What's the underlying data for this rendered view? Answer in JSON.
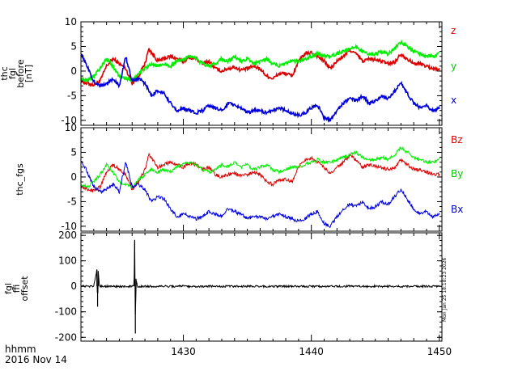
{
  "figure": {
    "time_label": "hhmm",
    "date_label": "2016 Nov 14",
    "timestamp": "Mon Jan 25 18:18:23 2026"
  },
  "chart_data": [
    {
      "type": "line",
      "panel": "thc_fgl_before",
      "ylabel_lines": [
        "thc",
        "fgl",
        "before",
        "[nT]"
      ],
      "ylim": [
        -11,
        10
      ],
      "yticks": [
        10,
        5,
        0,
        -5,
        -10
      ],
      "ytick_labels": [
        "10",
        "5",
        "0",
        "-5",
        "-10"
      ],
      "xlim": [
        1422.0,
        1450.2
      ],
      "xticks": [
        1430,
        1440,
        1450
      ],
      "xtick_labels": [
        "",
        "",
        ""
      ],
      "series": [
        {
          "name": "z",
          "color": "#dd0000",
          "label_color": "#dd0000",
          "x": [
            1422.0,
            1422.5,
            1423.0,
            1423.5,
            1424.0,
            1424.5,
            1425.0,
            1425.5,
            1426.0,
            1426.5,
            1427.0,
            1427.3,
            1427.6,
            1428.0,
            1428.5,
            1429.0,
            1429.5,
            1430.0,
            1430.5,
            1431.0,
            1431.5,
            1432.0,
            1432.5,
            1433.0,
            1433.5,
            1434.0,
            1434.5,
            1435.0,
            1435.5,
            1436.0,
            1436.5,
            1437.0,
            1437.5,
            1438.0,
            1438.5,
            1439.0,
            1439.5,
            1440.0,
            1440.5,
            1441.0,
            1441.5,
            1442.0,
            1442.5,
            1443.0,
            1443.5,
            1444.0,
            1444.5,
            1445.0,
            1445.5,
            1446.0,
            1446.5,
            1447.0,
            1447.5,
            1448.0,
            1448.5,
            1449.0,
            1449.5,
            1450.0
          ],
          "values": [
            -2.0,
            -2.5,
            -2.8,
            -2.0,
            1.0,
            2.5,
            1.5,
            0.5,
            -2.5,
            -1.0,
            1.5,
            4.5,
            3.5,
            2.0,
            2.5,
            3.0,
            2.5,
            2.0,
            2.8,
            2.5,
            1.5,
            2.0,
            0.5,
            0.0,
            0.5,
            0.8,
            0.2,
            0.5,
            1.0,
            0.5,
            -1.0,
            -1.5,
            -0.5,
            -0.5,
            -1.0,
            2.0,
            3.5,
            3.8,
            3.0,
            2.0,
            0.5,
            2.0,
            3.0,
            4.3,
            3.5,
            2.0,
            2.5,
            2.3,
            2.0,
            1.5,
            1.8,
            3.5,
            2.5,
            1.5,
            1.5,
            1.0,
            0.5,
            0.5
          ]
        },
        {
          "name": "y",
          "color": "#00ee00",
          "label_color": "#00cc00",
          "x": [
            1422.0,
            1422.5,
            1423.0,
            1423.5,
            1424.0,
            1424.5,
            1425.0,
            1425.5,
            1426.0,
            1426.5,
            1427.0,
            1427.5,
            1428.0,
            1428.5,
            1429.0,
            1429.5,
            1430.0,
            1430.5,
            1431.0,
            1431.5,
            1432.0,
            1432.5,
            1433.0,
            1433.5,
            1434.0,
            1434.5,
            1435.0,
            1435.5,
            1436.0,
            1436.5,
            1437.0,
            1437.5,
            1438.0,
            1438.5,
            1439.0,
            1439.5,
            1440.0,
            1440.5,
            1441.0,
            1441.5,
            1442.0,
            1442.5,
            1443.0,
            1443.5,
            1444.0,
            1444.5,
            1445.0,
            1445.5,
            1446.0,
            1446.5,
            1447.0,
            1447.5,
            1448.0,
            1448.5,
            1449.0,
            1449.5,
            1450.0
          ],
          "values": [
            -1.5,
            -2.0,
            -1.0,
            0.5,
            2.5,
            1.0,
            -1.0,
            -1.5,
            -2.0,
            -0.5,
            0.5,
            1.5,
            1.0,
            1.5,
            1.0,
            2.0,
            2.5,
            3.0,
            2.5,
            1.5,
            1.0,
            1.5,
            2.5,
            2.0,
            3.0,
            2.0,
            2.5,
            1.5,
            2.0,
            2.5,
            1.5,
            1.0,
            1.5,
            2.0,
            2.0,
            2.5,
            3.0,
            3.5,
            3.0,
            3.0,
            3.5,
            4.0,
            4.5,
            5.0,
            4.0,
            3.5,
            3.5,
            4.0,
            3.5,
            4.5,
            6.0,
            5.0,
            4.0,
            3.5,
            3.0,
            3.0,
            3.5
          ]
        },
        {
          "name": "x",
          "color": "#0000dd",
          "label_color": "#0000cc",
          "x": [
            1422.0,
            1422.5,
            1423.0,
            1423.5,
            1424.0,
            1424.5,
            1425.0,
            1425.5,
            1426.0,
            1426.5,
            1427.0,
            1427.5,
            1428.0,
            1428.5,
            1429.0,
            1429.5,
            1430.0,
            1430.5,
            1431.0,
            1431.5,
            1432.0,
            1432.5,
            1433.0,
            1433.5,
            1434.0,
            1434.5,
            1435.0,
            1435.5,
            1436.0,
            1436.5,
            1437.0,
            1437.5,
            1438.0,
            1438.5,
            1439.0,
            1439.5,
            1440.0,
            1440.5,
            1441.0,
            1441.5,
            1442.0,
            1442.5,
            1443.0,
            1443.5,
            1444.0,
            1444.5,
            1445.0,
            1445.5,
            1446.0,
            1446.5,
            1447.0,
            1447.5,
            1448.0,
            1448.5,
            1449.0,
            1449.5,
            1450.0
          ],
          "values": [
            3.5,
            1.0,
            -2.0,
            -3.0,
            -2.5,
            -1.5,
            -3.0,
            3.0,
            -2.0,
            -1.5,
            -2.5,
            -5.0,
            -4.0,
            -4.5,
            -6.5,
            -8.0,
            -7.5,
            -8.0,
            -8.5,
            -8.0,
            -7.0,
            -7.5,
            -8.0,
            -6.5,
            -7.0,
            -7.5,
            -8.5,
            -8.0,
            -8.0,
            -8.5,
            -8.0,
            -7.5,
            -8.0,
            -8.5,
            -9.0,
            -8.5,
            -7.5,
            -7.0,
            -9.5,
            -10.0,
            -8.0,
            -6.5,
            -5.5,
            -6.0,
            -5.0,
            -6.5,
            -6.0,
            -5.0,
            -5.5,
            -4.0,
            -2.5,
            -4.5,
            -6.5,
            -7.5,
            -7.0,
            -8.0,
            -7.5
          ]
        }
      ]
    },
    {
      "type": "line",
      "panel": "thc_fgs",
      "ylabel_lines": [
        "thc_fgs"
      ],
      "ylim": [
        -11,
        10
      ],
      "yticks": [
        10,
        5,
        0,
        -5,
        -10
      ],
      "ytick_labels": [
        "10",
        "5",
        "0",
        "-5",
        "-10"
      ],
      "xlim": [
        1422.0,
        1450.2
      ],
      "xticks": [
        1430,
        1440,
        1450
      ],
      "xtick_labels": [
        "",
        "",
        ""
      ],
      "series": [
        {
          "name": "Bz",
          "color": "#dd0000",
          "label_color": "#dd0000",
          "x": [
            1422.0,
            1422.5,
            1423.0,
            1423.5,
            1424.0,
            1424.5,
            1425.0,
            1425.5,
            1426.0,
            1426.5,
            1427.0,
            1427.3,
            1427.6,
            1428.0,
            1428.5,
            1429.0,
            1429.5,
            1430.0,
            1430.5,
            1431.0,
            1431.5,
            1432.0,
            1432.5,
            1433.0,
            1433.5,
            1434.0,
            1434.5,
            1435.0,
            1435.5,
            1436.0,
            1436.5,
            1437.0,
            1437.5,
            1438.0,
            1438.5,
            1439.0,
            1439.5,
            1440.0,
            1440.5,
            1441.0,
            1441.5,
            1442.0,
            1442.5,
            1443.0,
            1443.5,
            1444.0,
            1444.5,
            1445.0,
            1445.5,
            1446.0,
            1446.5,
            1447.0,
            1447.5,
            1448.0,
            1448.5,
            1449.0,
            1449.5,
            1450.0
          ],
          "values": [
            -2.0,
            -2.5,
            -2.8,
            -2.0,
            1.0,
            2.5,
            1.5,
            0.5,
            -2.5,
            -1.0,
            1.5,
            4.5,
            3.5,
            2.0,
            2.5,
            3.0,
            2.5,
            2.0,
            2.8,
            2.5,
            1.5,
            2.0,
            0.5,
            0.0,
            0.5,
            0.8,
            0.2,
            0.5,
            1.0,
            0.5,
            -1.0,
            -1.5,
            -0.5,
            -0.5,
            -1.0,
            2.0,
            3.5,
            3.8,
            3.0,
            2.0,
            0.5,
            2.0,
            3.0,
            4.3,
            3.5,
            2.0,
            2.5,
            2.3,
            2.0,
            1.5,
            1.8,
            3.5,
            2.5,
            1.5,
            1.5,
            1.0,
            0.5,
            0.5
          ]
        },
        {
          "name": "By",
          "color": "#00ee00",
          "label_color": "#00cc00",
          "x": [
            1422.0,
            1422.5,
            1423.0,
            1423.5,
            1424.0,
            1424.5,
            1425.0,
            1425.5,
            1426.0,
            1426.5,
            1427.0,
            1427.5,
            1428.0,
            1428.5,
            1429.0,
            1429.5,
            1430.0,
            1430.5,
            1431.0,
            1431.5,
            1432.0,
            1432.5,
            1433.0,
            1433.5,
            1434.0,
            1434.5,
            1435.0,
            1435.5,
            1436.0,
            1436.5,
            1437.0,
            1437.5,
            1438.0,
            1438.5,
            1439.0,
            1439.5,
            1440.0,
            1440.5,
            1441.0,
            1441.5,
            1442.0,
            1442.5,
            1443.0,
            1443.5,
            1444.0,
            1444.5,
            1445.0,
            1445.5,
            1446.0,
            1446.5,
            1447.0,
            1447.5,
            1448.0,
            1448.5,
            1449.0,
            1449.5,
            1450.0
          ],
          "values": [
            -1.5,
            -2.0,
            -1.0,
            0.5,
            2.5,
            1.0,
            -1.0,
            -1.5,
            -2.0,
            -0.5,
            0.5,
            1.5,
            1.0,
            1.5,
            1.0,
            2.0,
            2.5,
            3.0,
            2.5,
            1.5,
            1.0,
            1.5,
            2.5,
            2.0,
            3.0,
            2.0,
            2.5,
            1.5,
            2.0,
            2.5,
            1.5,
            1.0,
            1.5,
            2.0,
            2.0,
            2.5,
            3.0,
            3.5,
            3.0,
            3.0,
            3.5,
            4.0,
            4.5,
            5.0,
            4.0,
            3.5,
            3.5,
            4.0,
            3.5,
            4.5,
            6.0,
            5.0,
            4.0,
            3.5,
            3.0,
            3.0,
            3.5
          ]
        },
        {
          "name": "Bx",
          "color": "#0000dd",
          "label_color": "#0000cc",
          "x": [
            1422.0,
            1422.5,
            1423.0,
            1423.5,
            1424.0,
            1424.5,
            1425.0,
            1425.5,
            1426.0,
            1426.5,
            1427.0,
            1427.5,
            1428.0,
            1428.5,
            1429.0,
            1429.5,
            1430.0,
            1430.5,
            1431.0,
            1431.5,
            1432.0,
            1432.5,
            1433.0,
            1433.5,
            1434.0,
            1434.5,
            1435.0,
            1435.5,
            1436.0,
            1436.5,
            1437.0,
            1437.5,
            1438.0,
            1438.5,
            1439.0,
            1439.5,
            1440.0,
            1440.5,
            1441.0,
            1441.5,
            1442.0,
            1442.5,
            1443.0,
            1443.5,
            1444.0,
            1444.5,
            1445.0,
            1445.5,
            1446.0,
            1446.5,
            1447.0,
            1447.5,
            1448.0,
            1448.5,
            1449.0,
            1449.5,
            1450.0
          ],
          "values": [
            3.5,
            1.0,
            -2.0,
            -3.0,
            -2.5,
            -1.5,
            -3.0,
            3.0,
            -2.0,
            -1.5,
            -2.5,
            -5.0,
            -4.0,
            -4.5,
            -6.5,
            -8.0,
            -7.5,
            -8.0,
            -8.5,
            -8.0,
            -7.0,
            -7.5,
            -8.0,
            -6.5,
            -7.0,
            -7.5,
            -8.5,
            -8.0,
            -8.0,
            -8.5,
            -8.0,
            -7.5,
            -8.0,
            -8.5,
            -9.0,
            -8.5,
            -7.5,
            -7.0,
            -9.5,
            -10.0,
            -8.0,
            -6.5,
            -5.5,
            -6.0,
            -5.0,
            -6.5,
            -6.0,
            -5.0,
            -5.5,
            -4.0,
            -2.5,
            -4.5,
            -6.5,
            -7.5,
            -7.0,
            -8.0,
            -7.5
          ]
        }
      ]
    },
    {
      "type": "line",
      "panel": "fgl_ffi_offset",
      "ylabel_lines": [
        "fgl",
        "ffi",
        "offset"
      ],
      "ylim": [
        -215,
        210
      ],
      "yticks": [
        200,
        100,
        0,
        -100,
        -200
      ],
      "ytick_labels": [
        "200",
        "100",
        "0",
        "-100",
        "-200"
      ],
      "xlim": [
        1422.0,
        1450.2
      ],
      "xticks": [
        1430,
        1440,
        1450
      ],
      "xtick_labels": [
        "1430",
        "1440",
        "1450"
      ],
      "series": [
        {
          "name": "offset",
          "color": "#000000",
          "x": [
            1422.0,
            1423.0,
            1423.25,
            1423.3,
            1423.35,
            1423.45,
            1424.0,
            1425.0,
            1426.15,
            1426.2,
            1426.25,
            1426.3,
            1426.4,
            1427.0,
            1430.0,
            1440.0,
            1450.0
          ],
          "values": [
            0,
            0,
            65,
            -80,
            60,
            0,
            0,
            0,
            0,
            180,
            -185,
            30,
            0,
            0,
            0,
            0,
            0
          ],
          "noise_amplitude": 4
        }
      ]
    }
  ]
}
